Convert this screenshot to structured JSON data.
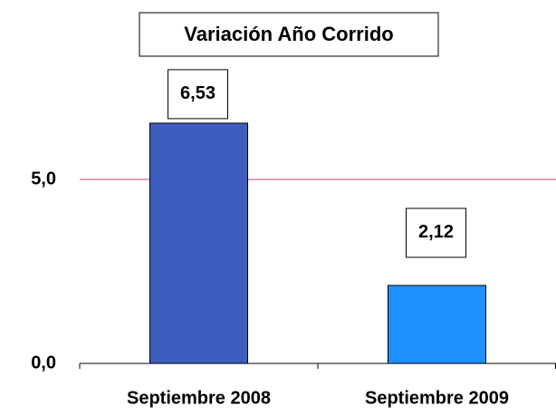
{
  "chart_data": {
    "type": "bar",
    "title": "Variación Año Corrido",
    "categories": [
      "Septiembre 2008",
      "Septiembre 2009"
    ],
    "values": [
      6.53,
      2.12
    ],
    "value_labels": [
      "6,53",
      "2,12"
    ],
    "colors": [
      "#3f5cbf",
      "#1e90ff"
    ],
    "ylim": [
      0,
      9
    ],
    "yticks": [
      {
        "value": 0,
        "label": "0,0"
      },
      {
        "value": 5,
        "label": "5,0"
      }
    ],
    "grid": true,
    "grid_color": "#c0407f"
  }
}
